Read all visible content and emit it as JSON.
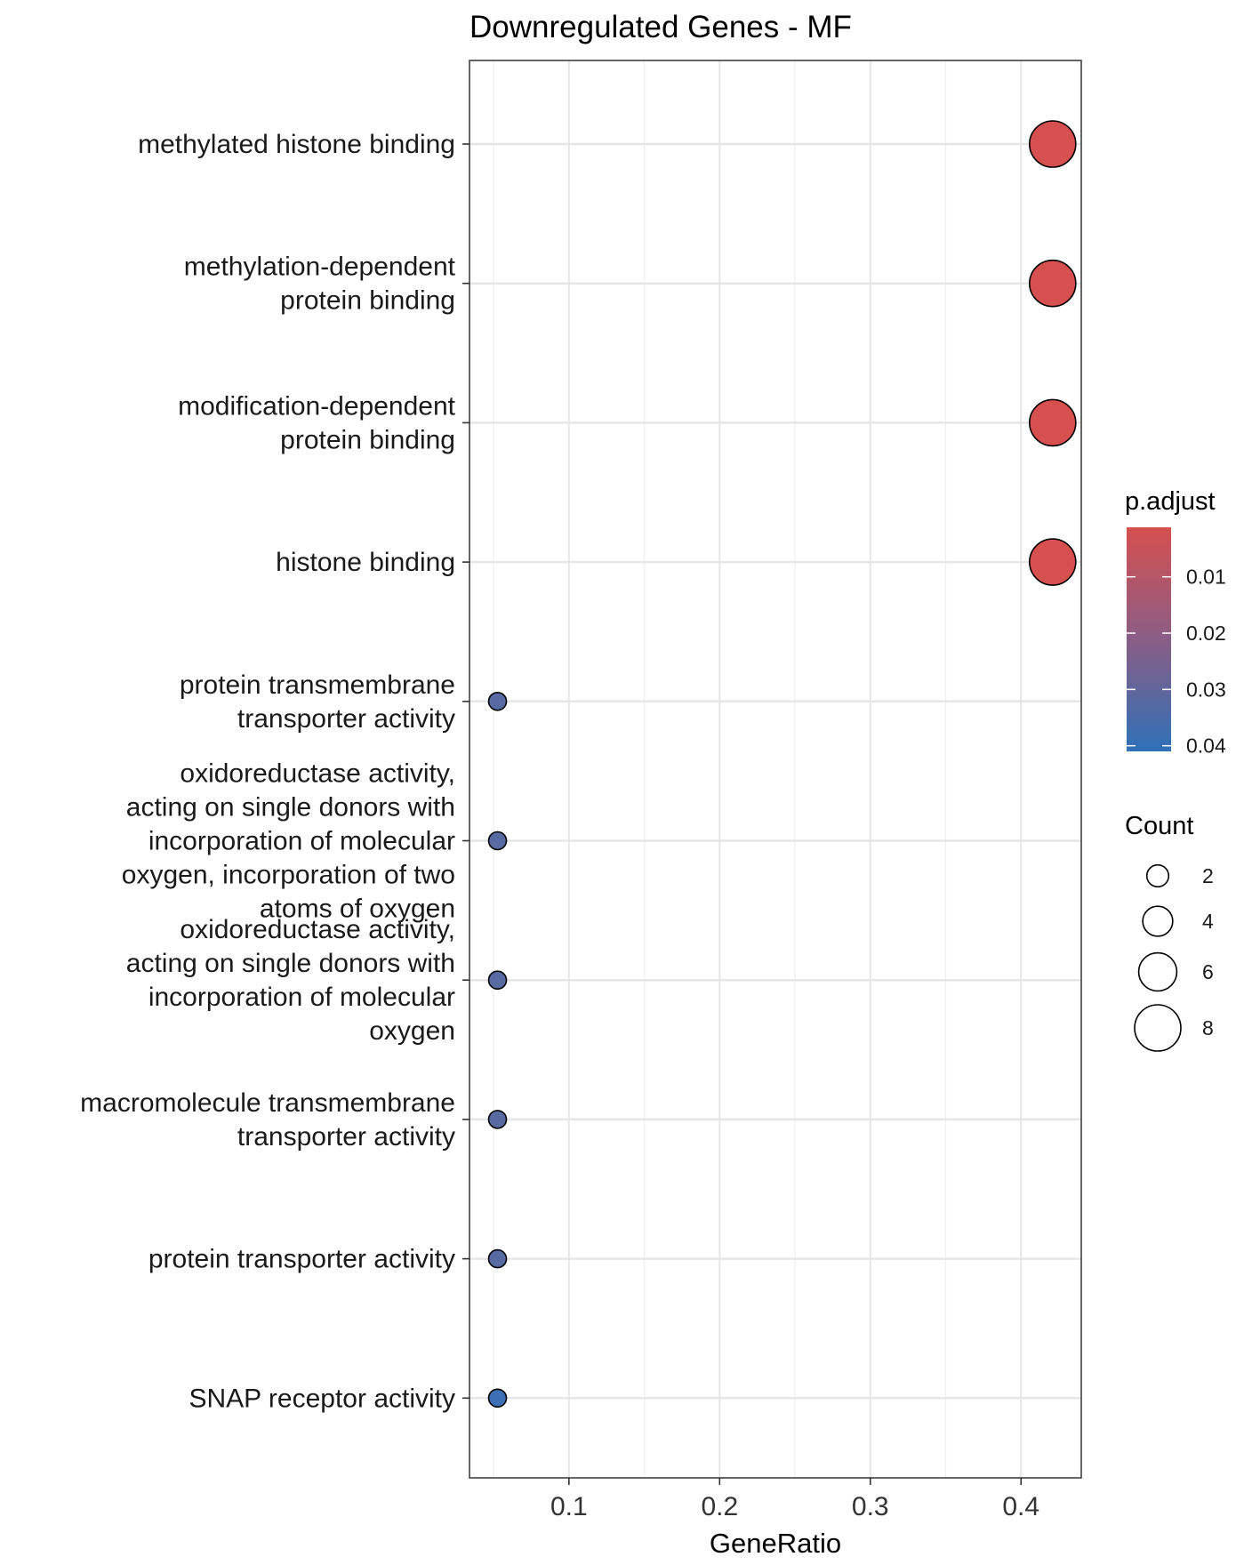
{
  "chart_data": {
    "type": "scatter",
    "title": "Downregulated Genes - MF",
    "xlabel": "GeneRatio",
    "ylabel": "",
    "xlim": [
      0.034,
      0.44
    ],
    "xticks": [
      0.1,
      0.2,
      0.3,
      0.4
    ],
    "xtick_labels": [
      "0.1",
      "0.2",
      "0.3",
      "0.4"
    ],
    "grid": true,
    "categories": [
      [
        "methylated histone binding"
      ],
      [
        "methylation-dependent",
        "protein binding"
      ],
      [
        "modification-dependent",
        "protein binding"
      ],
      [
        "histone binding"
      ],
      [
        "protein transmembrane",
        "transporter activity"
      ],
      [
        "oxidoreductase activity,",
        "acting on single donors with",
        "incorporation of molecular",
        "oxygen, incorporation of two",
        "atoms of oxygen"
      ],
      [
        "oxidoreductase activity,",
        "acting on single donors with",
        "incorporation of molecular",
        "oxygen"
      ],
      [
        "macromolecule transmembrane",
        "transporter activity"
      ],
      [
        "protein transporter activity"
      ],
      [
        "SNAP receptor activity"
      ]
    ],
    "points": [
      {
        "gene_ratio": 0.421,
        "count": 8,
        "p_adjust": 0.0012
      },
      {
        "gene_ratio": 0.421,
        "count": 8,
        "p_adjust": 0.0012
      },
      {
        "gene_ratio": 0.421,
        "count": 8,
        "p_adjust": 0.0012
      },
      {
        "gene_ratio": 0.421,
        "count": 8,
        "p_adjust": 0.0012
      },
      {
        "gene_ratio": 0.0526,
        "count": 1,
        "p_adjust": 0.034
      },
      {
        "gene_ratio": 0.0526,
        "count": 1,
        "p_adjust": 0.034
      },
      {
        "gene_ratio": 0.0526,
        "count": 1,
        "p_adjust": 0.034
      },
      {
        "gene_ratio": 0.0526,
        "count": 1,
        "p_adjust": 0.034
      },
      {
        "gene_ratio": 0.0526,
        "count": 1,
        "p_adjust": 0.034
      },
      {
        "gene_ratio": 0.0526,
        "count": 1,
        "p_adjust": 0.041
      }
    ],
    "color_legend": {
      "title": "p.adjust",
      "ticks": [
        0.01,
        0.02,
        0.03,
        0.04
      ],
      "tick_labels": [
        "0.01",
        "0.02",
        "0.03",
        "0.04"
      ],
      "range": [
        0.0012,
        0.041
      ],
      "low_color": "#d6504f",
      "high_color": "#3c6fb4"
    },
    "size_legend": {
      "title": "Count",
      "values": [
        2,
        4,
        6,
        8
      ],
      "labels": [
        "2",
        "4",
        "6",
        "8"
      ]
    },
    "legend_placement": "right"
  }
}
